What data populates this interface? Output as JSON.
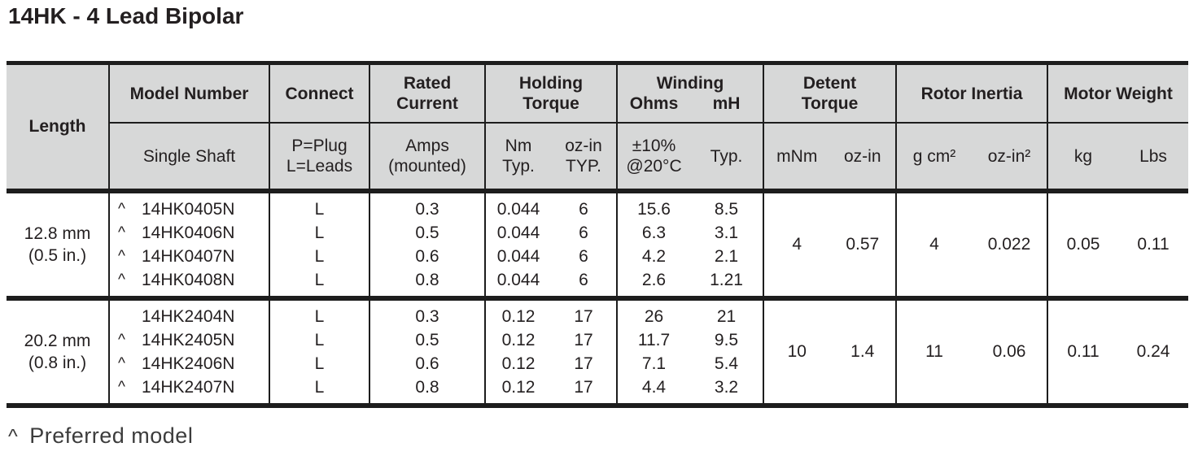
{
  "title": "14HK - 4 Lead Bipolar",
  "footnote": {
    "marker": "^",
    "text": "Preferred model"
  },
  "colors": {
    "header_bg": "#d7d8d8",
    "border": "#1d1d1d",
    "text": "#231f20"
  },
  "table": {
    "header": {
      "length": "Length",
      "model": {
        "top": "Model Number",
        "sub": "Single Shaft"
      },
      "connect": {
        "top": "Connect",
        "sub_line1": "P=Plug",
        "sub_line2": "L=Leads"
      },
      "rated": {
        "top_line1": "Rated",
        "top_line2": "Current",
        "sub_line1": "Amps",
        "sub_line2": "(mounted)"
      },
      "holding": {
        "top_line1": "Holding",
        "top_line2": "Torque",
        "subA_line1": "Nm",
        "subA_line2": "Typ.",
        "subB_line1": "oz-in",
        "subB_line2": "TYP."
      },
      "winding": {
        "top": "Winding",
        "unitA": "Ohms",
        "unitB": "mH",
        "subA_line1": "±10%",
        "subA_line2": "@20°C",
        "subB": "Typ."
      },
      "detent": {
        "top_line1": "Detent",
        "top_line2": "Torque",
        "subA": "mNm",
        "subB": "oz-in"
      },
      "rotor": {
        "top": "Rotor Inertia",
        "subA": "g cm²",
        "subB": "oz-in²"
      },
      "weight": {
        "top": "Motor Weight",
        "subA": "kg",
        "subB": "Lbs"
      }
    },
    "blocks": [
      {
        "length_line1": "12.8 mm",
        "length_line2": "(0.5 in.)",
        "rows": [
          {
            "marker": "^",
            "model": "14HK0405N",
            "connect": "L",
            "amps": "0.3",
            "torque_nm": "0.044",
            "torque_ozin": "6",
            "ohms": "15.6",
            "mh": "8.5"
          },
          {
            "marker": "^",
            "model": "14HK0406N",
            "connect": "L",
            "amps": "0.5",
            "torque_nm": "0.044",
            "torque_ozin": "6",
            "ohms": "6.3",
            "mh": "3.1"
          },
          {
            "marker": "^",
            "model": "14HK0407N",
            "connect": "L",
            "amps": "0.6",
            "torque_nm": "0.044",
            "torque_ozin": "6",
            "ohms": "4.2",
            "mh": "2.1"
          },
          {
            "marker": "^",
            "model": "14HK0408N",
            "connect": "L",
            "amps": "0.8",
            "torque_nm": "0.044",
            "torque_ozin": "6",
            "ohms": "2.6",
            "mh": "1.21"
          }
        ],
        "detent_mnm": "4",
        "detent_ozin": "0.57",
        "inertia_gcm2": "4",
        "inertia_ozin2": "0.022",
        "weight_kg": "0.05",
        "weight_lbs": "0.11"
      },
      {
        "length_line1": "20.2 mm",
        "length_line2": "(0.8 in.)",
        "rows": [
          {
            "marker": "",
            "model": "14HK2404N",
            "connect": "L",
            "amps": "0.3",
            "torque_nm": "0.12",
            "torque_ozin": "17",
            "ohms": "26",
            "mh": "21"
          },
          {
            "marker": "^",
            "model": "14HK2405N",
            "connect": "L",
            "amps": "0.5",
            "torque_nm": "0.12",
            "torque_ozin": "17",
            "ohms": "11.7",
            "mh": "9.5"
          },
          {
            "marker": "^",
            "model": "14HK2406N",
            "connect": "L",
            "amps": "0.6",
            "torque_nm": "0.12",
            "torque_ozin": "17",
            "ohms": "7.1",
            "mh": "5.4"
          },
          {
            "marker": "^",
            "model": "14HK2407N",
            "connect": "L",
            "amps": "0.8",
            "torque_nm": "0.12",
            "torque_ozin": "17",
            "ohms": "4.4",
            "mh": "3.2"
          }
        ],
        "detent_mnm": "10",
        "detent_ozin": "1.4",
        "inertia_gcm2": "11",
        "inertia_ozin2": "0.06",
        "weight_kg": "0.11",
        "weight_lbs": "0.24"
      }
    ]
  }
}
